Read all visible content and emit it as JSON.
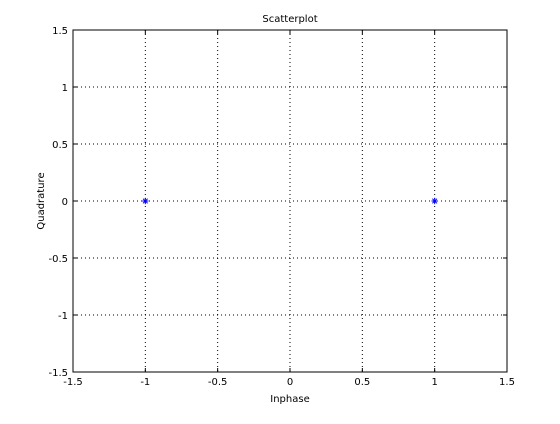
{
  "chart_data": {
    "type": "scatter",
    "title": "Scatterplot",
    "xlabel": "Inphase",
    "ylabel": "Quadrature",
    "xlim": [
      -1.5,
      1.5
    ],
    "ylim": [
      -1.5,
      1.5
    ],
    "grid": true,
    "x_ticks": [
      -1.5,
      -1,
      -0.5,
      0,
      0.5,
      1,
      1.5
    ],
    "y_ticks": [
      -1.5,
      -1,
      -0.5,
      0,
      0.5,
      1,
      1.5
    ],
    "x_tick_labels": [
      "-1.5",
      "-1",
      "-0.5",
      "0",
      "0.5",
      "1",
      "1.5"
    ],
    "y_tick_labels": [
      "-1.5",
      "-1",
      "-0.5",
      "0",
      "0.5",
      "1",
      "1.5"
    ],
    "marker": "*",
    "marker_color": "#0000ff",
    "series": [
      {
        "x": [
          -1,
          1
        ],
        "y": [
          0,
          0
        ]
      }
    ]
  }
}
